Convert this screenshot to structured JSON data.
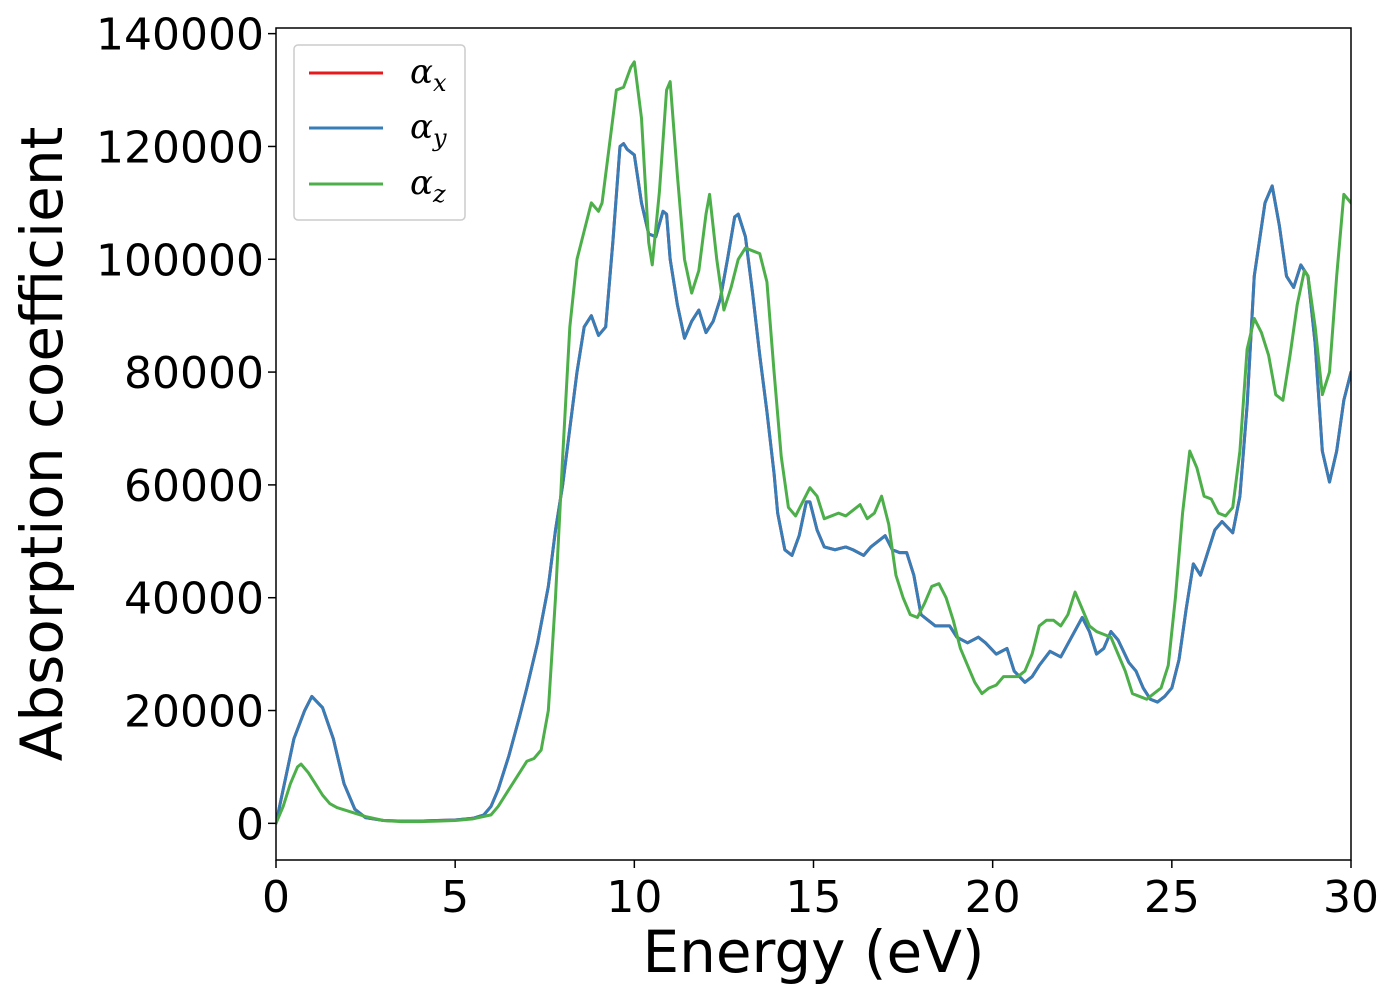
{
  "chart_data": {
    "type": "line",
    "title": "",
    "xlabel": "Energy (eV)",
    "ylabel": "Absorption coefficient",
    "xlim": [
      0,
      30
    ],
    "ylim": [
      -6500,
      141000
    ],
    "xticks": [
      0,
      5,
      10,
      15,
      20,
      25,
      30
    ],
    "yticks": [
      0,
      20000,
      40000,
      60000,
      80000,
      100000,
      120000,
      140000
    ],
    "grid": false,
    "legend_position": "top-left",
    "series": [
      {
        "name": "α",
        "subscript": "x",
        "color": "#e41a1c",
        "x": [
          0,
          0.2,
          0.5,
          0.8,
          1.0,
          1.3,
          1.6,
          1.9,
          2.2,
          2.5,
          3.0,
          3.5,
          4.0,
          4.5,
          5.0,
          5.5,
          5.8,
          6.0,
          6.2,
          6.5,
          6.8,
          7.0,
          7.3,
          7.6,
          7.8,
          8.0,
          8.2,
          8.4,
          8.6,
          8.8,
          9.0,
          9.2,
          9.4,
          9.6,
          9.7,
          9.8,
          10.0,
          10.2,
          10.4,
          10.6,
          10.8,
          10.9,
          11.0,
          11.2,
          11.4,
          11.6,
          11.8,
          12.0,
          12.2,
          12.4,
          12.6,
          12.8,
          12.9,
          13.1,
          13.3,
          13.5,
          13.7,
          13.9,
          14.0,
          14.2,
          14.4,
          14.6,
          14.8,
          14.9,
          15.1,
          15.3,
          15.6,
          15.9,
          16.1,
          16.4,
          16.6,
          16.8,
          17.0,
          17.2,
          17.4,
          17.6,
          17.8,
          18.0,
          18.2,
          18.4,
          18.6,
          18.8,
          19.0,
          19.3,
          19.6,
          19.8,
          20.1,
          20.4,
          20.6,
          20.9,
          21.1,
          21.3,
          21.6,
          21.9,
          22.2,
          22.5,
          22.7,
          22.9,
          23.1,
          23.3,
          23.5,
          23.8,
          24.0,
          24.2,
          24.4,
          24.6,
          24.8,
          25.0,
          25.2,
          25.4,
          25.6,
          25.8,
          26.0,
          26.2,
          26.4,
          26.7,
          26.9,
          27.1,
          27.3,
          27.6,
          27.8,
          28.0,
          28.2,
          28.4,
          28.6,
          28.8,
          29.0,
          29.2,
          29.4,
          29.6,
          29.8,
          30.0
        ],
        "y": [
          0,
          6000,
          15000,
          20000,
          22500,
          20500,
          15000,
          7000,
          2500,
          1000,
          500,
          400,
          400,
          500,
          600,
          900,
          1500,
          3000,
          6000,
          12000,
          19000,
          24000,
          32000,
          42000,
          52000,
          60000,
          70000,
          80000,
          88000,
          90000,
          86500,
          88000,
          103000,
          120000,
          120500,
          119500,
          118500,
          110000,
          104500,
          104000,
          108500,
          108000,
          100000,
          92000,
          86000,
          89000,
          91000,
          87000,
          89000,
          93000,
          100000,
          107500,
          108000,
          104000,
          94000,
          83000,
          73000,
          62000,
          55000,
          48500,
          47500,
          51000,
          57000,
          57000,
          52000,
          49000,
          48500,
          49000,
          48500,
          47500,
          49000,
          50000,
          51000,
          48500,
          48000,
          48000,
          44000,
          37000,
          36000,
          35000,
          35000,
          35000,
          33000,
          32000,
          33000,
          32000,
          30000,
          31000,
          27000,
          25000,
          26000,
          28000,
          30500,
          29500,
          33000,
          36500,
          34000,
          30000,
          31000,
          34000,
          32500,
          28500,
          27000,
          24000,
          22000,
          21500,
          22500,
          24000,
          29000,
          38000,
          46000,
          44000,
          48000,
          52000,
          53500,
          51500,
          58000,
          74000,
          97000,
          110000,
          113000,
          106000,
          97000,
          95000,
          99000,
          97000,
          85000,
          66000,
          60500,
          66000,
          75000,
          80000
        ]
      },
      {
        "name": "α",
        "subscript": "y",
        "color": "#377eb8",
        "x": [
          0,
          0.2,
          0.5,
          0.8,
          1.0,
          1.3,
          1.6,
          1.9,
          2.2,
          2.5,
          3.0,
          3.5,
          4.0,
          4.5,
          5.0,
          5.5,
          5.8,
          6.0,
          6.2,
          6.5,
          6.8,
          7.0,
          7.3,
          7.6,
          7.8,
          8.0,
          8.2,
          8.4,
          8.6,
          8.8,
          9.0,
          9.2,
          9.4,
          9.6,
          9.7,
          9.8,
          10.0,
          10.2,
          10.4,
          10.6,
          10.8,
          10.9,
          11.0,
          11.2,
          11.4,
          11.6,
          11.8,
          12.0,
          12.2,
          12.4,
          12.6,
          12.8,
          12.9,
          13.1,
          13.3,
          13.5,
          13.7,
          13.9,
          14.0,
          14.2,
          14.4,
          14.6,
          14.8,
          14.9,
          15.1,
          15.3,
          15.6,
          15.9,
          16.1,
          16.4,
          16.6,
          16.8,
          17.0,
          17.2,
          17.4,
          17.6,
          17.8,
          18.0,
          18.2,
          18.4,
          18.6,
          18.8,
          19.0,
          19.3,
          19.6,
          19.8,
          20.1,
          20.4,
          20.6,
          20.9,
          21.1,
          21.3,
          21.6,
          21.9,
          22.2,
          22.5,
          22.7,
          22.9,
          23.1,
          23.3,
          23.5,
          23.8,
          24.0,
          24.2,
          24.4,
          24.6,
          24.8,
          25.0,
          25.2,
          25.4,
          25.6,
          25.8,
          26.0,
          26.2,
          26.4,
          26.7,
          26.9,
          27.1,
          27.3,
          27.6,
          27.8,
          28.0,
          28.2,
          28.4,
          28.6,
          28.8,
          29.0,
          29.2,
          29.4,
          29.6,
          29.8,
          30.0
        ],
        "y": [
          0,
          6000,
          15000,
          20000,
          22500,
          20500,
          15000,
          7000,
          2500,
          1000,
          500,
          400,
          400,
          500,
          600,
          900,
          1500,
          3000,
          6000,
          12000,
          19000,
          24000,
          32000,
          42000,
          52000,
          60000,
          70000,
          80000,
          88000,
          90000,
          86500,
          88000,
          103000,
          120000,
          120500,
          119500,
          118500,
          110000,
          104500,
          104000,
          108500,
          108000,
          100000,
          92000,
          86000,
          89000,
          91000,
          87000,
          89000,
          93000,
          100000,
          107500,
          108000,
          104000,
          94000,
          83000,
          73000,
          62000,
          55000,
          48500,
          47500,
          51000,
          57000,
          57000,
          52000,
          49000,
          48500,
          49000,
          48500,
          47500,
          49000,
          50000,
          51000,
          48500,
          48000,
          48000,
          44000,
          37000,
          36000,
          35000,
          35000,
          35000,
          33000,
          32000,
          33000,
          32000,
          30000,
          31000,
          27000,
          25000,
          26000,
          28000,
          30500,
          29500,
          33000,
          36500,
          34000,
          30000,
          31000,
          34000,
          32500,
          28500,
          27000,
          24000,
          22000,
          21500,
          22500,
          24000,
          29000,
          38000,
          46000,
          44000,
          48000,
          52000,
          53500,
          51500,
          58000,
          74000,
          97000,
          110000,
          113000,
          106000,
          97000,
          95000,
          99000,
          97000,
          85000,
          66000,
          60500,
          66000,
          75000,
          80000
        ]
      },
      {
        "name": "α",
        "subscript": "z",
        "color": "#4daf4a",
        "x": [
          0,
          0.2,
          0.4,
          0.6,
          0.7,
          0.9,
          1.1,
          1.3,
          1.5,
          1.7,
          2.0,
          2.5,
          3.0,
          3.5,
          4.0,
          4.5,
          5.0,
          5.5,
          6.0,
          6.2,
          6.5,
          6.8,
          7.0,
          7.2,
          7.4,
          7.6,
          7.8,
          8.0,
          8.2,
          8.4,
          8.6,
          8.8,
          9.0,
          9.1,
          9.3,
          9.5,
          9.7,
          9.9,
          10.0,
          10.2,
          10.4,
          10.5,
          10.7,
          10.9,
          11.0,
          11.2,
          11.4,
          11.6,
          11.8,
          12.0,
          12.1,
          12.3,
          12.5,
          12.7,
          12.9,
          13.1,
          13.3,
          13.5,
          13.7,
          13.9,
          14.1,
          14.3,
          14.5,
          14.7,
          14.9,
          15.1,
          15.3,
          15.5,
          15.7,
          15.9,
          16.1,
          16.3,
          16.5,
          16.7,
          16.9,
          17.1,
          17.3,
          17.5,
          17.7,
          17.9,
          18.1,
          18.3,
          18.5,
          18.7,
          18.9,
          19.1,
          19.3,
          19.5,
          19.7,
          19.9,
          20.1,
          20.3,
          20.5,
          20.7,
          20.9,
          21.1,
          21.3,
          21.5,
          21.7,
          21.9,
          22.1,
          22.3,
          22.5,
          22.7,
          22.9,
          23.1,
          23.3,
          23.5,
          23.7,
          23.9,
          24.1,
          24.3,
          24.5,
          24.7,
          24.9,
          25.1,
          25.3,
          25.5,
          25.7,
          25.9,
          26.1,
          26.3,
          26.5,
          26.7,
          26.9,
          27.1,
          27.3,
          27.5,
          27.7,
          27.9,
          28.1,
          28.3,
          28.5,
          28.7,
          28.8,
          29.0,
          29.2,
          29.4,
          29.6,
          29.8,
          30.0
        ],
        "y": [
          0,
          3000,
          7000,
          10000,
          10500,
          9000,
          7000,
          5000,
          3500,
          2800,
          2200,
          1200,
          500,
          300,
          300,
          400,
          500,
          800,
          1500,
          3000,
          6000,
          9000,
          11000,
          11500,
          13000,
          20000,
          40000,
          65000,
          88000,
          100000,
          105000,
          110000,
          108500,
          110000,
          120000,
          130000,
          130500,
          134000,
          135000,
          125000,
          103000,
          99000,
          112000,
          130000,
          131500,
          115000,
          100000,
          94000,
          98000,
          108000,
          111500,
          100000,
          91000,
          95000,
          100000,
          102000,
          101500,
          101000,
          96000,
          80000,
          65000,
          56000,
          54500,
          57000,
          59500,
          58000,
          54000,
          54500,
          55000,
          54500,
          55500,
          56500,
          54000,
          55000,
          58000,
          53000,
          44000,
          40000,
          37000,
          36500,
          39000,
          42000,
          42500,
          40000,
          36000,
          31000,
          28000,
          25000,
          23000,
          24000,
          24500,
          26000,
          26000,
          26000,
          27000,
          30000,
          35000,
          36000,
          36000,
          35000,
          37000,
          41000,
          38000,
          35000,
          34000,
          33500,
          33000,
          30000,
          27000,
          23000,
          22500,
          22000,
          23000,
          24000,
          28000,
          40000,
          55000,
          66000,
          63000,
          58000,
          57500,
          55000,
          54500,
          56000,
          66000,
          84000,
          89500,
          87000,
          83000,
          76000,
          75000,
          83000,
          92000,
          98000,
          97000,
          88000,
          76000,
          80000,
          97000,
          111500,
          110000
        ]
      }
    ]
  }
}
